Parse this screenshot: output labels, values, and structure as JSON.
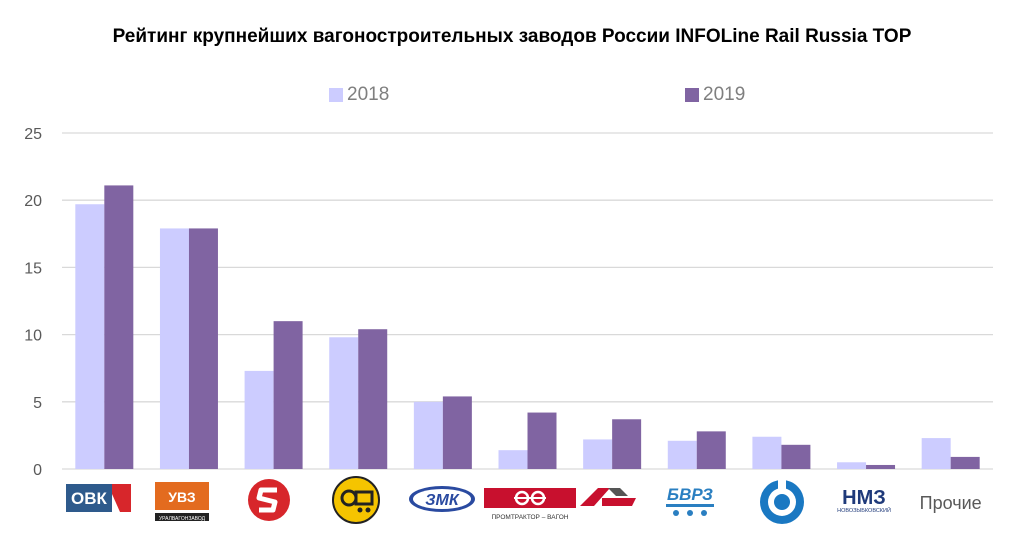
{
  "chart_data": {
    "type": "bar",
    "title": "Рейтинг крупнейших вагоностроительных заводов России INFOLine Rail Russia TOP",
    "xlabel": "",
    "ylabel": "",
    "ylim": [
      0,
      25
    ],
    "yticks": [
      "0",
      "5",
      "10",
      "15",
      "20",
      "25"
    ],
    "grid": true,
    "legend_position": "top",
    "categories": [
      "ОВК",
      "УВЗ",
      "Алтайвагон",
      "Азовобщемаш",
      "ЗМК",
      "Промтрактор-Вагон",
      "Рузхиммаш",
      "БВРЗ",
      "Канашский завод",
      "НМЗ",
      "Прочие"
    ],
    "category_labels": [
      "",
      "",
      "",
      "",
      "",
      "",
      "",
      "",
      "",
      "",
      "Прочие"
    ],
    "series": [
      {
        "name": "2018",
        "color": "#ccccff",
        "values": [
          19.7,
          17.9,
          7.3,
          9.8,
          5.0,
          1.4,
          2.2,
          2.1,
          2.4,
          0.5,
          2.3
        ]
      },
      {
        "name": "2019",
        "color": "#8064a2",
        "values": [
          21.1,
          17.9,
          11.0,
          10.4,
          5.4,
          4.2,
          3.7,
          2.8,
          1.8,
          0.3,
          0.9
        ]
      }
    ]
  },
  "logos": {
    "ovk": "ОВК",
    "uvz": "УВЗ",
    "uvz_sub": "УРАЛВАГОНЗАВОД",
    "zmk": "ЗМК",
    "promtraktor": "ПРОМТРАКТОР – ВАГОН",
    "bvrz": "БВРЗ",
    "nmz": "НМЗ",
    "nmz_sub": "НОВОЗЫБКОВСКИЙ"
  },
  "colors": {
    "grid": "#d9d9d9",
    "axis_text": "#595959",
    "ovk_blue": "#2e5a8c",
    "ovk_red": "#d7262b",
    "uvz_orange": "#e36b1f",
    "red_logo": "#d7262b",
    "yellow_logo": "#f5c400",
    "zmk_blue": "#2a4aa0",
    "promtraktor_red": "#c8102e",
    "ruzkhim_red": "#c8102e",
    "bvrz_blue": "#2a7fc1",
    "kanash_blue": "#1a78c2",
    "nmz_blue": "#1f3a7a"
  }
}
